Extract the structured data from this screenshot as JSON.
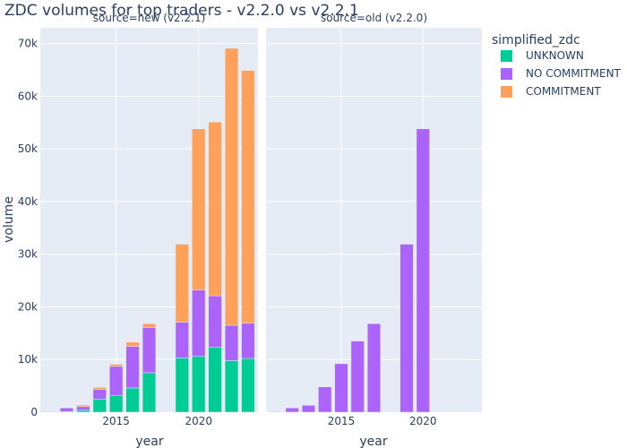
{
  "chart_data": {
    "type": "bar",
    "title": "ZDC volumes for top traders - v2.2.0 vs v2.2.1",
    "xlabel": "year",
    "ylabel": "volume",
    "ylim": [
      0,
      73000
    ],
    "yticks": [
      {
        "value": 0,
        "label": "0"
      },
      {
        "value": 10000,
        "label": "10k"
      },
      {
        "value": 20000,
        "label": "20k"
      },
      {
        "value": 30000,
        "label": "30k"
      },
      {
        "value": 40000,
        "label": "40k"
      },
      {
        "value": 50000,
        "label": "50k"
      },
      {
        "value": 60000,
        "label": "60k"
      },
      {
        "value": 70000,
        "label": "70k"
      }
    ],
    "xlim": [
      2010.4,
      2023.6
    ],
    "xticks": [
      {
        "value": 2015,
        "label": "2015"
      },
      {
        "value": 2020,
        "label": "2020"
      }
    ],
    "legend_title": "simplified_zdc",
    "legend_position": "right",
    "grid": true,
    "barmode": "stack",
    "colors": {
      "UNKNOWN": "#00cc96",
      "NO COMMITMENT": "#ab63fa",
      "COMMITMENT": "#ffa15a"
    },
    "series": [
      {
        "name": "UNKNOWN"
      },
      {
        "name": "NO COMMITMENT"
      },
      {
        "name": "COMMITMENT"
      }
    ],
    "facets": [
      {
        "label": "source=new (v2.2.1)",
        "x": [
          2011,
          2012,
          2013,
          2014,
          2015,
          2016,
          2017,
          2018,
          2019,
          2020,
          2021,
          2022,
          2023
        ],
        "values": {
          "UNKNOWN": [
            0,
            150,
            350,
            2500,
            3200,
            4600,
            7500,
            0,
            10300,
            10600,
            12300,
            9800,
            10200
          ],
          "NO COMMITMENT": [
            100,
            650,
            700,
            1800,
            5500,
            7900,
            8600,
            0,
            6800,
            12600,
            9800,
            6700,
            6700
          ],
          "COMMITMENT": [
            0,
            50,
            300,
            400,
            400,
            800,
            700,
            0,
            14800,
            30600,
            33000,
            52600,
            48000
          ]
        }
      },
      {
        "label": "source=old (v2.2.0)",
        "x": [
          2011,
          2012,
          2013,
          2014,
          2015,
          2016,
          2017,
          2018,
          2019,
          2020,
          2021,
          2022,
          2023
        ],
        "values": {
          "UNKNOWN": [
            0,
            0,
            0,
            0,
            0,
            0,
            0,
            0,
            0,
            0,
            0,
            0,
            0
          ],
          "NO COMMITMENT": [
            100,
            800,
            1300,
            4800,
            9200,
            13500,
            16800,
            0,
            31900,
            53800,
            0,
            0,
            0
          ],
          "COMMITMENT": [
            0,
            0,
            0,
            0,
            0,
            0,
            0,
            0,
            0,
            0,
            0,
            0,
            0
          ]
        }
      }
    ]
  }
}
